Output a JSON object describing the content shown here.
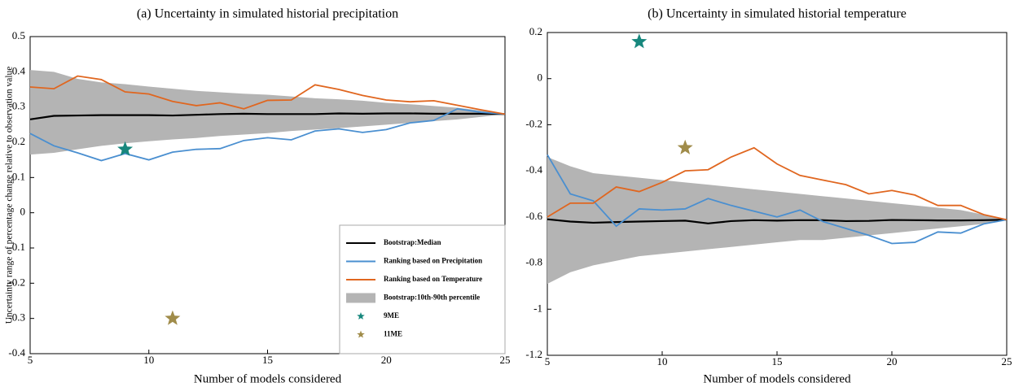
{
  "chart_data": [
    {
      "type": "line",
      "title": "(a) Uncertainty in simulated historial precipitation",
      "xlabel": "Number of models considered",
      "ylabel": "Uncertainty range of percentage change relative to observation value",
      "x": [
        5,
        6,
        7,
        8,
        9,
        10,
        11,
        12,
        13,
        14,
        15,
        16,
        17,
        18,
        19,
        20,
        21,
        22,
        23,
        24,
        25
      ],
      "xlim": [
        5,
        25
      ],
      "xticks": [
        5,
        10,
        15,
        20,
        25
      ],
      "ylim": [
        -0.4,
        0.5
      ],
      "yticks": [
        -0.4,
        -0.3,
        -0.2,
        -0.1,
        0,
        0.1,
        0.2,
        0.3,
        0.4,
        0.5
      ],
      "legend": "lower right",
      "series": [
        {
          "name": "Bootstrap:Median",
          "kind": "line",
          "color": "#000000",
          "values": [
            0.265,
            0.275,
            0.276,
            0.277,
            0.277,
            0.277,
            0.276,
            0.278,
            0.28,
            0.281,
            0.28,
            0.28,
            0.28,
            0.282,
            0.281,
            0.282,
            0.282,
            0.281,
            0.281,
            0.281,
            0.28
          ]
        },
        {
          "name": "Ranking based on Precipitation",
          "kind": "line",
          "color": "#4a8fd0",
          "values": [
            0.225,
            0.19,
            0.17,
            0.148,
            0.168,
            0.15,
            0.172,
            0.18,
            0.182,
            0.205,
            0.213,
            0.207,
            0.232,
            0.238,
            0.228,
            0.236,
            0.255,
            0.262,
            0.295,
            0.285,
            0.28
          ]
        },
        {
          "name": "Ranking based on Temperature",
          "kind": "line",
          "color": "#e0661f",
          "values": [
            0.357,
            0.352,
            0.388,
            0.378,
            0.343,
            0.337,
            0.316,
            0.304,
            0.312,
            0.295,
            0.319,
            0.32,
            0.363,
            0.35,
            0.333,
            0.32,
            0.315,
            0.318,
            0.305,
            0.292,
            0.28
          ]
        },
        {
          "name": "Bootstrap:10th-90th percentile",
          "kind": "band",
          "color": "#b4b4b4",
          "upper": [
            0.405,
            0.4,
            0.38,
            0.37,
            0.365,
            0.358,
            0.352,
            0.346,
            0.342,
            0.338,
            0.335,
            0.33,
            0.325,
            0.322,
            0.318,
            0.312,
            0.308,
            0.303,
            0.298,
            0.29,
            0.28
          ],
          "lower": [
            0.165,
            0.17,
            0.18,
            0.19,
            0.197,
            0.203,
            0.208,
            0.212,
            0.218,
            0.222,
            0.226,
            0.232,
            0.236,
            0.24,
            0.245,
            0.25,
            0.255,
            0.26,
            0.265,
            0.272,
            0.28
          ]
        },
        {
          "name": "9ME",
          "kind": "star",
          "color": "#17877d",
          "x": [
            9
          ],
          "values": [
            0.18
          ]
        },
        {
          "name": "11ME",
          "kind": "star",
          "color": "#a08c4a",
          "x": [
            11
          ],
          "values": [
            -0.3
          ]
        }
      ]
    },
    {
      "type": "line",
      "title": "(b) Uncertainty in simulated historial temperature",
      "xlabel": "Number of models considered",
      "x": [
        5,
        6,
        7,
        8,
        9,
        10,
        11,
        12,
        13,
        14,
        15,
        16,
        17,
        18,
        19,
        20,
        21,
        22,
        23,
        24,
        25
      ],
      "xlim": [
        5,
        25
      ],
      "xticks": [
        5,
        10,
        15,
        20,
        25
      ],
      "ylim": [
        -1.2,
        0.2
      ],
      "yticks": [
        -1.2,
        -1,
        -0.8,
        -0.6,
        -0.4,
        -0.2,
        0,
        0.2
      ],
      "series": [
        {
          "kind": "band",
          "color": "#b4b4b4",
          "upper": [
            -0.34,
            -0.38,
            -0.41,
            -0.42,
            -0.43,
            -0.44,
            -0.45,
            -0.46,
            -0.47,
            -0.48,
            -0.49,
            -0.5,
            -0.51,
            -0.52,
            -0.53,
            -0.54,
            -0.55,
            -0.56,
            -0.57,
            -0.59,
            -0.612
          ],
          "lower": [
            -0.89,
            -0.84,
            -0.81,
            -0.79,
            -0.77,
            -0.76,
            -0.75,
            -0.74,
            -0.73,
            -0.72,
            -0.71,
            -0.7,
            -0.7,
            -0.69,
            -0.68,
            -0.67,
            -0.66,
            -0.65,
            -0.64,
            -0.63,
            -0.612
          ]
        },
        {
          "kind": "line",
          "color": "#000000",
          "values": [
            -0.61,
            -0.62,
            -0.625,
            -0.622,
            -0.62,
            -0.618,
            -0.616,
            -0.628,
            -0.618,
            -0.614,
            -0.616,
            -0.614,
            -0.614,
            -0.618,
            -0.617,
            -0.613,
            -0.614,
            -0.615,
            -0.615,
            -0.614,
            -0.612
          ]
        },
        {
          "kind": "line",
          "color": "#4a8fd0",
          "values": [
            -0.33,
            -0.5,
            -0.53,
            -0.64,
            -0.565,
            -0.57,
            -0.565,
            -0.52,
            -0.55,
            -0.575,
            -0.6,
            -0.57,
            -0.62,
            -0.65,
            -0.68,
            -0.715,
            -0.71,
            -0.665,
            -0.67,
            -0.63,
            -0.612
          ]
        },
        {
          "kind": "line",
          "color": "#e0661f",
          "values": [
            -0.6,
            -0.54,
            -0.54,
            -0.47,
            -0.49,
            -0.45,
            -0.4,
            -0.395,
            -0.34,
            -0.3,
            -0.37,
            -0.42,
            -0.44,
            -0.46,
            -0.5,
            -0.485,
            -0.505,
            -0.55,
            -0.55,
            -0.59,
            -0.612
          ]
        },
        {
          "kind": "star",
          "color": "#17877d",
          "x": [
            9
          ],
          "values": [
            0.16
          ]
        },
        {
          "kind": "star",
          "color": "#a08c4a",
          "x": [
            11
          ],
          "values": [
            -0.3
          ]
        }
      ]
    }
  ]
}
